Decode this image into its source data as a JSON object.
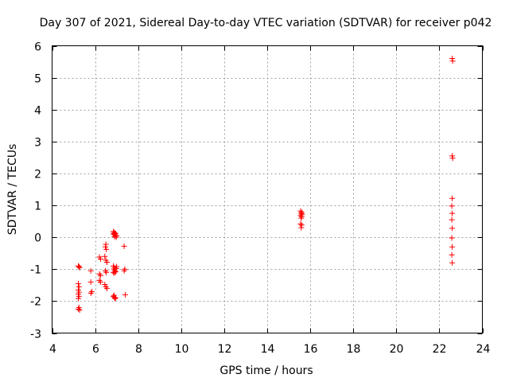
{
  "chart_data": {
    "type": "scatter",
    "title": "Day 307 of 2021, Sidereal Day-to-day VTEC variation (SDTVAR) for receiver p042",
    "xlabel": "GPS time / hours",
    "ylabel": "SDTVAR / TECUs",
    "xlim": [
      4,
      24
    ],
    "ylim": [
      -3,
      6
    ],
    "x_ticks": [
      4,
      6,
      8,
      10,
      12,
      14,
      16,
      18,
      20,
      22,
      24
    ],
    "y_ticks": [
      -3,
      -2,
      -1,
      0,
      1,
      2,
      3,
      4,
      5,
      6
    ],
    "x_tick_labels": [
      "4",
      "6",
      "8",
      "10",
      "12",
      "14",
      "16",
      "18",
      "20",
      "22",
      "24"
    ],
    "y_tick_labels": [
      "-3",
      "-2",
      "-1",
      "0",
      "1",
      "2",
      "3",
      "4",
      "5",
      "6"
    ],
    "grid": true,
    "marker": "plus",
    "color": "#ff0000",
    "series": [
      {
        "name": "p042",
        "points": [
          [
            5.25,
            -0.92
          ],
          [
            5.28,
            -0.95
          ],
          [
            5.22,
            -0.9
          ],
          [
            5.22,
            -1.45
          ],
          [
            5.25,
            -1.55
          ],
          [
            5.22,
            -1.65
          ],
          [
            5.25,
            -1.72
          ],
          [
            5.22,
            -1.78
          ],
          [
            5.25,
            -1.85
          ],
          [
            5.22,
            -1.92
          ],
          [
            5.25,
            -2.2
          ],
          [
            5.22,
            -2.25
          ],
          [
            5.28,
            -2.28
          ],
          [
            5.8,
            -1.05
          ],
          [
            5.8,
            -1.4
          ],
          [
            5.85,
            -1.7
          ],
          [
            5.8,
            -1.75
          ],
          [
            6.2,
            -0.62
          ],
          [
            6.25,
            -0.68
          ],
          [
            6.2,
            -1.15
          ],
          [
            6.25,
            -1.2
          ],
          [
            6.2,
            -1.35
          ],
          [
            6.25,
            -1.4
          ],
          [
            6.5,
            -0.22
          ],
          [
            6.48,
            -0.3
          ],
          [
            6.52,
            -0.38
          ],
          [
            6.45,
            -0.6
          ],
          [
            6.5,
            -0.72
          ],
          [
            6.55,
            -0.78
          ],
          [
            6.48,
            -1.05
          ],
          [
            6.52,
            -1.1
          ],
          [
            6.45,
            -1.48
          ],
          [
            6.5,
            -1.55
          ],
          [
            6.55,
            -1.6
          ],
          [
            6.85,
            0.18
          ],
          [
            6.9,
            0.15
          ],
          [
            6.88,
            0.12
          ],
          [
            6.92,
            0.08
          ],
          [
            6.95,
            0.05
          ],
          [
            6.9,
            0.02
          ],
          [
            6.98,
            0.0
          ],
          [
            6.85,
            0.1
          ],
          [
            6.95,
            0.12
          ],
          [
            7.0,
            0.05
          ],
          [
            6.85,
            -0.9
          ],
          [
            6.9,
            -0.95
          ],
          [
            6.88,
            -1.0
          ],
          [
            6.92,
            -1.05
          ],
          [
            6.95,
            -1.08
          ],
          [
            6.9,
            -1.12
          ],
          [
            6.98,
            -0.98
          ],
          [
            6.85,
            -1.1
          ],
          [
            7.0,
            -0.92
          ],
          [
            6.85,
            -1.85
          ],
          [
            6.9,
            -1.88
          ],
          [
            6.92,
            -1.92
          ],
          [
            6.95,
            -1.9
          ],
          [
            6.88,
            -1.82
          ],
          [
            7.35,
            -0.28
          ],
          [
            7.38,
            -1.0
          ],
          [
            7.35,
            -1.05
          ],
          [
            7.4,
            -1.8
          ],
          [
            15.55,
            0.82
          ],
          [
            15.6,
            0.78
          ],
          [
            15.58,
            0.75
          ],
          [
            15.62,
            0.72
          ],
          [
            15.55,
            0.68
          ],
          [
            15.6,
            0.65
          ],
          [
            15.58,
            0.6
          ],
          [
            15.55,
            0.42
          ],
          [
            15.6,
            0.38
          ],
          [
            15.58,
            0.3
          ],
          [
            22.6,
            5.6
          ],
          [
            22.62,
            5.52
          ],
          [
            22.6,
            2.55
          ],
          [
            22.62,
            2.48
          ],
          [
            22.6,
            1.22
          ],
          [
            22.58,
            0.98
          ],
          [
            22.6,
            0.75
          ],
          [
            22.58,
            0.55
          ],
          [
            22.6,
            0.28
          ],
          [
            22.58,
            -0.02
          ],
          [
            22.6,
            -0.3
          ],
          [
            22.58,
            -0.55
          ],
          [
            22.6,
            -0.8
          ]
        ]
      }
    ]
  }
}
